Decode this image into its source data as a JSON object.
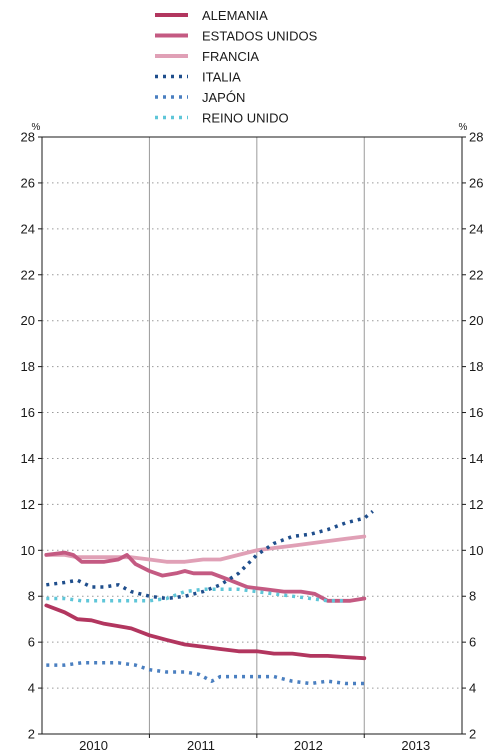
{
  "chart_data": {
    "type": "line",
    "title": "",
    "xlabel": "",
    "ylabel": "",
    "unit_label": "%",
    "ylim": [
      2,
      28
    ],
    "yticks": [
      2,
      4,
      6,
      8,
      10,
      12,
      14,
      16,
      18,
      20,
      22,
      24,
      26,
      28
    ],
    "xlim": [
      2009.92,
      2013.83
    ],
    "year_labels": [
      "2010",
      "2011",
      "2012",
      "2013"
    ],
    "year_label_positions": [
      2010.4,
      2011.4,
      2012.4,
      2013.4
    ],
    "year_boundaries": [
      2010.92,
      2011.92,
      2012.92
    ],
    "grid": "vertical year separators and horizontal dotted gridlines",
    "legend_position": "top-center",
    "series": [
      {
        "name": "ALEMANIA",
        "color": "#b2365f",
        "style": "solid",
        "x": [
          2009.96,
          2010.13,
          2010.25,
          2010.38,
          2010.5,
          2010.63,
          2010.75,
          2010.92,
          2011.08,
          2011.25,
          2011.42,
          2011.58,
          2011.75,
          2011.92,
          2012.08,
          2012.25,
          2012.42,
          2012.58,
          2012.75,
          2012.92
        ],
        "y": [
          7.6,
          7.3,
          7.0,
          6.95,
          6.8,
          6.7,
          6.6,
          6.3,
          6.1,
          5.9,
          5.8,
          5.7,
          5.6,
          5.6,
          5.5,
          5.5,
          5.4,
          5.4,
          5.35,
          5.3
        ]
      },
      {
        "name": "ESTADOS UNIDOS",
        "color": "#c45a82",
        "style": "solid",
        "x": [
          2009.96,
          2010.13,
          2010.21,
          2010.29,
          2010.38,
          2010.5,
          2010.63,
          2010.71,
          2010.79,
          2010.92,
          2011.04,
          2011.17,
          2011.25,
          2011.33,
          2011.5,
          2011.67,
          2011.83,
          2012.0,
          2012.17,
          2012.33,
          2012.46,
          2012.58,
          2012.67,
          2012.79,
          2012.92
        ],
        "y": [
          9.8,
          9.9,
          9.8,
          9.5,
          9.5,
          9.5,
          9.6,
          9.8,
          9.4,
          9.1,
          8.9,
          9.0,
          9.1,
          9.0,
          9.0,
          8.7,
          8.4,
          8.3,
          8.2,
          8.2,
          8.1,
          7.8,
          7.8,
          7.8,
          7.9
        ]
      },
      {
        "name": "FRANCIA",
        "color": "#e0a0b6",
        "style": "solid",
        "x": [
          2009.96,
          2010.13,
          2010.25,
          2010.42,
          2010.58,
          2010.75,
          2010.92,
          2011.08,
          2011.25,
          2011.42,
          2011.58,
          2011.75,
          2011.92,
          2012.08,
          2012.25,
          2012.42,
          2012.58,
          2012.75,
          2012.92
        ],
        "y": [
          9.8,
          9.8,
          9.7,
          9.7,
          9.7,
          9.7,
          9.6,
          9.5,
          9.5,
          9.6,
          9.6,
          9.8,
          10.0,
          10.1,
          10.2,
          10.3,
          10.4,
          10.5,
          10.6
        ]
      },
      {
        "name": "ITALIA",
        "color": "#1f4e8c",
        "style": "dotted",
        "x": [
          2009.96,
          2010.13,
          2010.25,
          2010.38,
          2010.5,
          2010.63,
          2010.75,
          2010.92,
          2011.08,
          2011.25,
          2011.42,
          2011.58,
          2011.75,
          2011.92,
          2012.08,
          2012.25,
          2012.42,
          2012.58,
          2012.75,
          2012.92,
          2013.0
        ],
        "y": [
          8.5,
          8.6,
          8.7,
          8.4,
          8.4,
          8.5,
          8.2,
          8.0,
          7.9,
          8.0,
          8.2,
          8.5,
          9.0,
          9.8,
          10.3,
          10.6,
          10.7,
          10.9,
          11.2,
          11.4,
          11.7
        ]
      },
      {
        "name": "JAPÓN",
        "color": "#4a7fc0",
        "style": "dotted",
        "x": [
          2009.96,
          2010.13,
          2010.29,
          2010.46,
          2010.63,
          2010.79,
          2010.92,
          2011.08,
          2011.25,
          2011.38,
          2011.5,
          2011.58,
          2011.75,
          2011.92,
          2012.08,
          2012.25,
          2012.42,
          2012.58,
          2012.75,
          2012.92
        ],
        "y": [
          5.0,
          5.0,
          5.1,
          5.1,
          5.1,
          5.0,
          4.8,
          4.7,
          4.7,
          4.6,
          4.3,
          4.5,
          4.5,
          4.5,
          4.5,
          4.3,
          4.2,
          4.3,
          4.2,
          4.2
        ]
      },
      {
        "name": "REINO UNIDO",
        "color": "#5fc6d8",
        "style": "dotted",
        "x": [
          2009.96,
          2010.13,
          2010.29,
          2010.46,
          2010.63,
          2010.79,
          2010.92,
          2011.08,
          2011.25,
          2011.42,
          2011.58,
          2011.75,
          2011.92,
          2012.08,
          2012.25,
          2012.42,
          2012.58,
          2012.75
        ],
        "y": [
          7.9,
          7.9,
          7.8,
          7.8,
          7.8,
          7.8,
          7.8,
          7.9,
          8.2,
          8.3,
          8.3,
          8.3,
          8.2,
          8.1,
          8.0,
          7.9,
          7.8,
          7.8
        ]
      }
    ]
  }
}
